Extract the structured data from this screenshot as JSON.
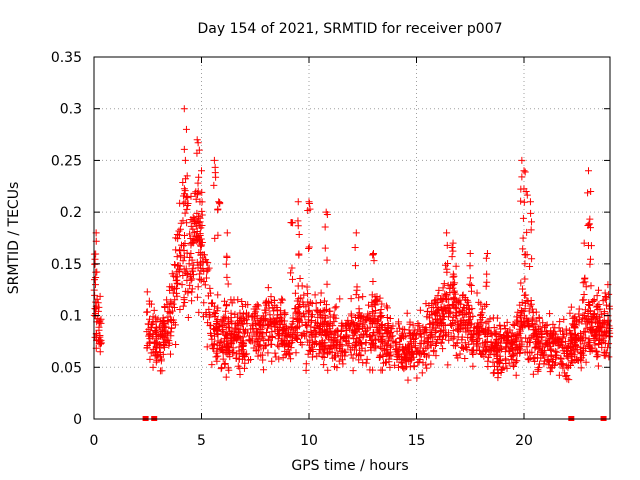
{
  "chart_data": {
    "type": "scatter",
    "title": "Day 154 of 2021, SRMTID for receiver p007",
    "xlabel": "GPS time / hours",
    "ylabel": "SRMTID / TECUs",
    "xlim": [
      0,
      24
    ],
    "ylim": [
      0,
      0.35
    ],
    "grid": true,
    "legend": "none",
    "marker": "+",
    "color": "#ff0000",
    "x_ticks": [
      0,
      5,
      10,
      15,
      20
    ],
    "x_tick_labels": [
      "0",
      "5",
      "10",
      "15",
      "20"
    ],
    "y_ticks": [
      0,
      0.05,
      0.1,
      0.15,
      0.2,
      0.25,
      0.3,
      0.35
    ],
    "y_tick_labels": [
      "0",
      "0.05",
      "0.1",
      "0.15",
      "0.2",
      "0.25",
      "0.3",
      "0.35"
    ],
    "zero_markers_x": [
      2.4,
      2.8,
      22.2,
      23.7
    ],
    "trend": [
      [
        0.0,
        0.12
      ],
      [
        0.3,
        0.09
      ],
      [
        2.5,
        0.09
      ],
      [
        3.0,
        0.07
      ],
      [
        3.5,
        0.09
      ],
      [
        4.0,
        0.15
      ],
      [
        4.5,
        0.17
      ],
      [
        5.0,
        0.16
      ],
      [
        5.5,
        0.09
      ],
      [
        6.0,
        0.08
      ],
      [
        7.0,
        0.08
      ],
      [
        8.0,
        0.09
      ],
      [
        9.0,
        0.08
      ],
      [
        9.5,
        0.1
      ],
      [
        10.0,
        0.09
      ],
      [
        11.0,
        0.08
      ],
      [
        12.0,
        0.08
      ],
      [
        13.0,
        0.09
      ],
      [
        14.0,
        0.07
      ],
      [
        15.0,
        0.07
      ],
      [
        16.0,
        0.09
      ],
      [
        16.7,
        0.11
      ],
      [
        17.0,
        0.09
      ],
      [
        18.0,
        0.08
      ],
      [
        19.0,
        0.07
      ],
      [
        19.5,
        0.07
      ],
      [
        20.0,
        0.1
      ],
      [
        20.5,
        0.08
      ],
      [
        21.0,
        0.07
      ],
      [
        22.0,
        0.07
      ],
      [
        23.0,
        0.09
      ],
      [
        24.0,
        0.09
      ]
    ],
    "spikes": [
      [
        0.1,
        0.18
      ],
      [
        0.05,
        0.15
      ],
      [
        4.2,
        0.3
      ],
      [
        4.3,
        0.28
      ],
      [
        4.8,
        0.27
      ],
      [
        4.9,
        0.26
      ],
      [
        5.0,
        0.24
      ],
      [
        5.6,
        0.25
      ],
      [
        5.8,
        0.21
      ],
      [
        6.2,
        0.18
      ],
      [
        9.2,
        0.19
      ],
      [
        9.5,
        0.21
      ],
      [
        10.0,
        0.21
      ],
      [
        10.8,
        0.2
      ],
      [
        12.2,
        0.18
      ],
      [
        13.0,
        0.16
      ],
      [
        16.4,
        0.18
      ],
      [
        16.7,
        0.17
      ],
      [
        17.5,
        0.16
      ],
      [
        18.3,
        0.16
      ],
      [
        19.9,
        0.25
      ],
      [
        20.0,
        0.24
      ],
      [
        20.1,
        0.22
      ],
      [
        20.3,
        0.21
      ],
      [
        22.8,
        0.17
      ],
      [
        23.0,
        0.24
      ],
      [
        23.1,
        0.22
      ]
    ]
  }
}
